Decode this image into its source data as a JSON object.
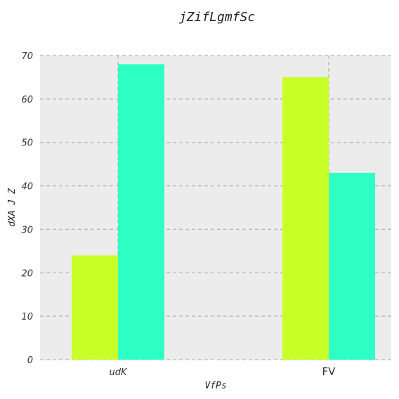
{
  "chart_data": {
    "type": "bar",
    "title": "jZifLgmfSc",
    "xlabel": "VfPs",
    "ylabel": "dXA J Z",
    "categories": [
      "udK",
      "FV"
    ],
    "series": [
      {
        "values": [
          24,
          65
        ],
        "color": "#c8ff26"
      },
      {
        "values": [
          68,
          43
        ],
        "color": "#2effc4"
      }
    ],
    "ylim": [
      0,
      70
    ],
    "yticks": [
      0,
      10,
      20,
      30,
      40,
      50,
      60,
      70
    ],
    "grid": true,
    "background": "#ececec",
    "grid_color": "#b5b5b5"
  }
}
